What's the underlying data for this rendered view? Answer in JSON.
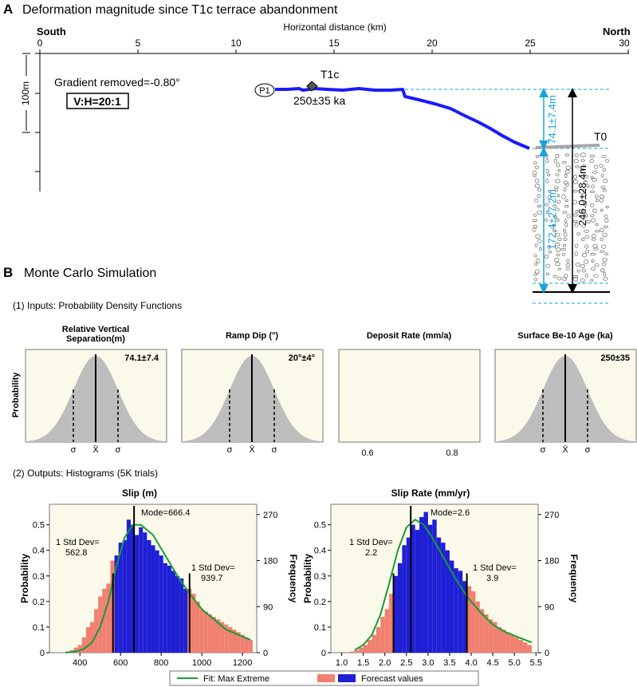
{
  "panel_a": {
    "letter": "A",
    "title": "Deformation magnitude since T1c terrace abandonment",
    "south_label": "South",
    "north_label": "North",
    "axis_title": "Horizontal distance (km)",
    "ticks": [
      "0",
      "5",
      "10",
      "15",
      "20",
      "25",
      "30"
    ],
    "scale_label": "100m",
    "gradient_text": "Gradient removed=-0.80°",
    "vh_text": "V:H=20:1",
    "p1_label": "P1",
    "t1c_label": "T1c",
    "t1c_age": "250±35 ka",
    "t0_label": "T0",
    "meas_top": "74.1±7.4m",
    "meas_bottom": "172.4±27.2m",
    "meas_total": "246.0±28.4m",
    "colors": {
      "profile": "#1a1aff",
      "cyan": "#1aa3d9",
      "gravel": "#777777",
      "t0": "#a6a6a6"
    }
  },
  "panel_b": {
    "letter": "B",
    "title": "Monte Carlo Simulation",
    "inputs_title": "(1) Inputs: Probability Density Functions",
    "outputs_title": "(2) Outputs: Histograms (5K trials)",
    "pdf_ylabel": "Probability",
    "pdfs": [
      {
        "title1": "Relative Vertical",
        "title2": "Separation(m)",
        "value": "74.1±7.4",
        "sigma": "σ",
        "mean": "X̄"
      },
      {
        "title1": "",
        "title2": "Ramp Dip (°)",
        "value": "20°±4°",
        "sigma": "σ",
        "mean": "X̄"
      },
      {
        "title1": "",
        "title2": "Deposit Rate (mm/a)",
        "tick1": "0.6",
        "tick2": "0.8"
      },
      {
        "title1": "",
        "title2": "Surface Be-10 Age (ka)",
        "value": "250±35",
        "sigma": "σ",
        "mean": "X̄"
      }
    ],
    "legend": {
      "fit": "Fit: Max Extreme",
      "forecast": "Forecast values"
    },
    "colors": {
      "salmon": "#f08070",
      "blue": "#1f1fd6",
      "fit": "#1a9a3a",
      "bg": "#fbfaea"
    }
  },
  "chart_data": [
    {
      "type": "bar",
      "title": "Slip (m)",
      "ylabel": "Probability",
      "y2label": "Frequency",
      "xticks": [
        "400",
        "600",
        "800",
        "1000",
        "1200"
      ],
      "yticks": [
        "0",
        "0.1",
        "0.2",
        "0.3",
        "0.4",
        "0.5"
      ],
      "y2ticks": [
        "0",
        "90",
        "180",
        "270"
      ],
      "xlim": [
        250,
        1270
      ],
      "ylim": [
        0,
        0.58
      ],
      "bin_start": 250,
      "bin_width": 20,
      "values": [
        0,
        0,
        0,
        0,
        0.005,
        0.01,
        0.02,
        0.03,
        0.06,
        0.1,
        0.12,
        0.17,
        0.22,
        0.25,
        0.27,
        0.36,
        0.38,
        0.43,
        0.44,
        0.52,
        0.5,
        0.46,
        0.49,
        0.47,
        0.44,
        0.42,
        0.4,
        0.38,
        0.35,
        0.34,
        0.32,
        0.3,
        0.29,
        0.25,
        0.25,
        0.23,
        0.2,
        0.17,
        0.16,
        0.15,
        0.14,
        0.13,
        0.12,
        0.11,
        0.1,
        0.09,
        0.08,
        0.07,
        0.06,
        0.05
      ],
      "fit_x": [
        330,
        380,
        420,
        460,
        500,
        540,
        580,
        620,
        660,
        700,
        760,
        820,
        880,
        940,
        1000,
        1060,
        1120,
        1180,
        1240
      ],
      "fit_y": [
        0,
        0.005,
        0.015,
        0.04,
        0.1,
        0.2,
        0.34,
        0.45,
        0.5,
        0.5,
        0.46,
        0.38,
        0.3,
        0.23,
        0.17,
        0.13,
        0.09,
        0.07,
        0.05
      ],
      "blue_range": [
        562.8,
        939.7
      ],
      "mode": 666.4,
      "mode_label": "Mode=666.4",
      "sd_low_label1": "1 Std Dev=",
      "sd_low_label2": "562.8",
      "sd_high_label1": "1 Std Dev=",
      "sd_high_label2": "939.7"
    },
    {
      "type": "bar",
      "title": "Slip Rate (mm/yr)",
      "ylabel": "Probability",
      "y2label": "Frequency",
      "xticks": [
        "1.0",
        "1.5",
        "2.0",
        "2.5",
        "3.0",
        "3.5",
        "4.0",
        "4.5",
        "5.0",
        "5.5"
      ],
      "yticks": [
        "0",
        "0.1",
        "0.2",
        "0.3",
        "0.4",
        "0.5"
      ],
      "y2ticks": [
        "0",
        "90",
        "180",
        "270"
      ],
      "xlim": [
        0.75,
        5.55
      ],
      "ylim": [
        0,
        0.58
      ],
      "bin_start": 1.1,
      "bin_width": 0.1,
      "values": [
        0,
        0.005,
        0.01,
        0.02,
        0.03,
        0.05,
        0.07,
        0.1,
        0.14,
        0.17,
        0.23,
        0.3,
        0.35,
        0.42,
        0.45,
        0.5,
        0.48,
        0.53,
        0.55,
        0.5,
        0.52,
        0.45,
        0.43,
        0.4,
        0.36,
        0.33,
        0.32,
        0.28,
        0.26,
        0.24,
        0.2,
        0.17,
        0.15,
        0.13,
        0.12,
        0.1,
        0.09,
        0.08,
        0.07,
        0.06,
        0.05,
        0.04,
        0.03
      ],
      "fit_x": [
        1.3,
        1.5,
        1.7,
        1.9,
        2.1,
        2.3,
        2.5,
        2.7,
        2.9,
        3.1,
        3.3,
        3.6,
        3.9,
        4.2,
        4.5,
        4.8,
        5.1,
        5.4
      ],
      "fit_y": [
        0.01,
        0.03,
        0.07,
        0.15,
        0.27,
        0.4,
        0.49,
        0.52,
        0.5,
        0.45,
        0.39,
        0.3,
        0.22,
        0.16,
        0.11,
        0.08,
        0.06,
        0.04
      ],
      "blue_range": [
        2.2,
        3.9
      ],
      "mode": 2.6,
      "mode_label": "Mode=2.6",
      "sd_low_label1": "1 Std Dev=",
      "sd_low_label2": "2.2",
      "sd_high_label1": "1 Std Dev=",
      "sd_high_label2": "3.9"
    }
  ]
}
